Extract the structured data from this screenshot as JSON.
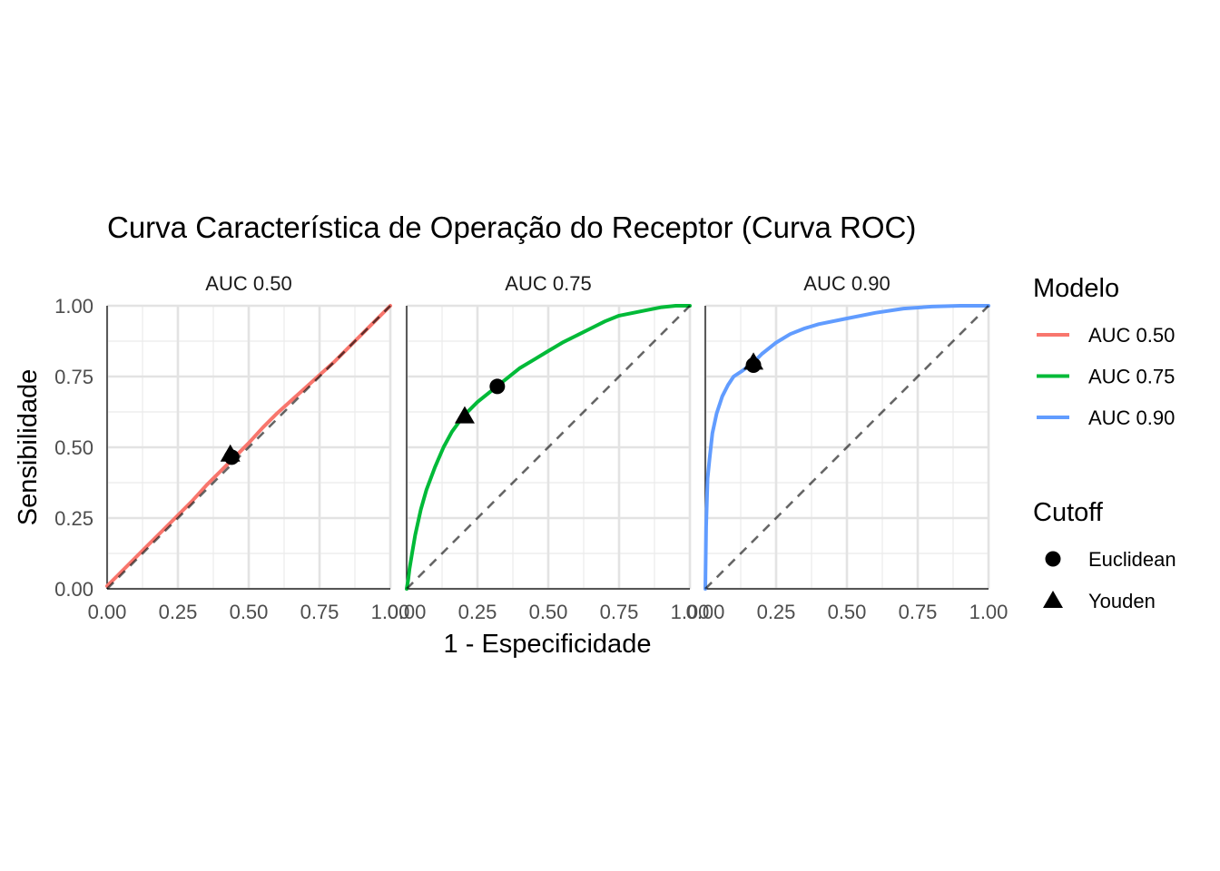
{
  "chart_data": {
    "type": "line",
    "title": "Curva Característica de Operação do Receptor (Curva ROC)",
    "xlabel": "1 - Especificidade",
    "ylabel": "Sensibilidade",
    "xlim": [
      0,
      1
    ],
    "ylim": [
      0,
      1
    ],
    "grid": true,
    "legend_position": "right",
    "x_ticks": [
      "0.00",
      "0.25",
      "0.50",
      "0.75",
      "1.00"
    ],
    "y_ticks": [
      "0.00",
      "0.25",
      "0.50",
      "0.75",
      "1.00"
    ],
    "reference_line": {
      "style": "dashed",
      "color": "#666666",
      "x": [
        0,
        1
      ],
      "y": [
        0,
        1
      ]
    },
    "panels": [
      {
        "title": "AUC 0.50",
        "color": "#F8766D",
        "x": [
          0,
          0.05,
          0.1,
          0.15,
          0.2,
          0.25,
          0.3,
          0.35,
          0.4,
          0.45,
          0.5,
          0.55,
          0.6,
          0.65,
          0.7,
          0.75,
          0.8,
          0.85,
          0.9,
          0.95,
          1
        ],
        "y": [
          0.01,
          0.06,
          0.11,
          0.16,
          0.21,
          0.26,
          0.31,
          0.365,
          0.415,
          0.465,
          0.515,
          0.57,
          0.62,
          0.665,
          0.71,
          0.755,
          0.8,
          0.85,
          0.9,
          0.95,
          1
        ],
        "cutoffs": {
          "Euclidean": [
            0.44,
            0.465
          ],
          "Youden": [
            0.435,
            0.475
          ]
        }
      },
      {
        "title": "AUC 0.75",
        "color": "#00BA38",
        "x": [
          0,
          0.005,
          0.01,
          0.02,
          0.03,
          0.05,
          0.07,
          0.1,
          0.13,
          0.16,
          0.2,
          0.25,
          0.3,
          0.35,
          0.4,
          0.45,
          0.5,
          0.55,
          0.6,
          0.65,
          0.7,
          0.75,
          0.8,
          0.85,
          0.9,
          0.95,
          1
        ],
        "y": [
          0,
          0.03,
          0.07,
          0.13,
          0.19,
          0.28,
          0.35,
          0.43,
          0.5,
          0.555,
          0.61,
          0.66,
          0.7,
          0.74,
          0.78,
          0.81,
          0.84,
          0.87,
          0.895,
          0.92,
          0.945,
          0.965,
          0.975,
          0.985,
          0.995,
          1,
          1
        ],
        "cutoffs": {
          "Euclidean": [
            0.32,
            0.715
          ],
          "Youden": [
            0.205,
            0.61
          ]
        }
      },
      {
        "title": "AUC 0.90",
        "color": "#619CFF",
        "x": [
          0,
          0.003,
          0.008,
          0.015,
          0.025,
          0.04,
          0.06,
          0.08,
          0.1,
          0.13,
          0.17,
          0.2,
          0.25,
          0.3,
          0.35,
          0.4,
          0.5,
          0.6,
          0.7,
          0.8,
          0.9,
          1
        ],
        "y": [
          0,
          0.22,
          0.39,
          0.46,
          0.55,
          0.62,
          0.68,
          0.72,
          0.75,
          0.77,
          0.8,
          0.83,
          0.87,
          0.9,
          0.92,
          0.935,
          0.955,
          0.975,
          0.99,
          0.997,
          1,
          1
        ],
        "cutoffs": {
          "Euclidean": [
            0.17,
            0.79
          ],
          "Youden": [
            0.17,
            0.8
          ]
        }
      }
    ],
    "legend_color": {
      "title": "Modelo",
      "items": [
        "AUC 0.50",
        "AUC 0.75",
        "AUC 0.90"
      ]
    },
    "legend_shape": {
      "title": "Cutoff",
      "items": [
        "Euclidean",
        "Youden"
      ]
    }
  }
}
